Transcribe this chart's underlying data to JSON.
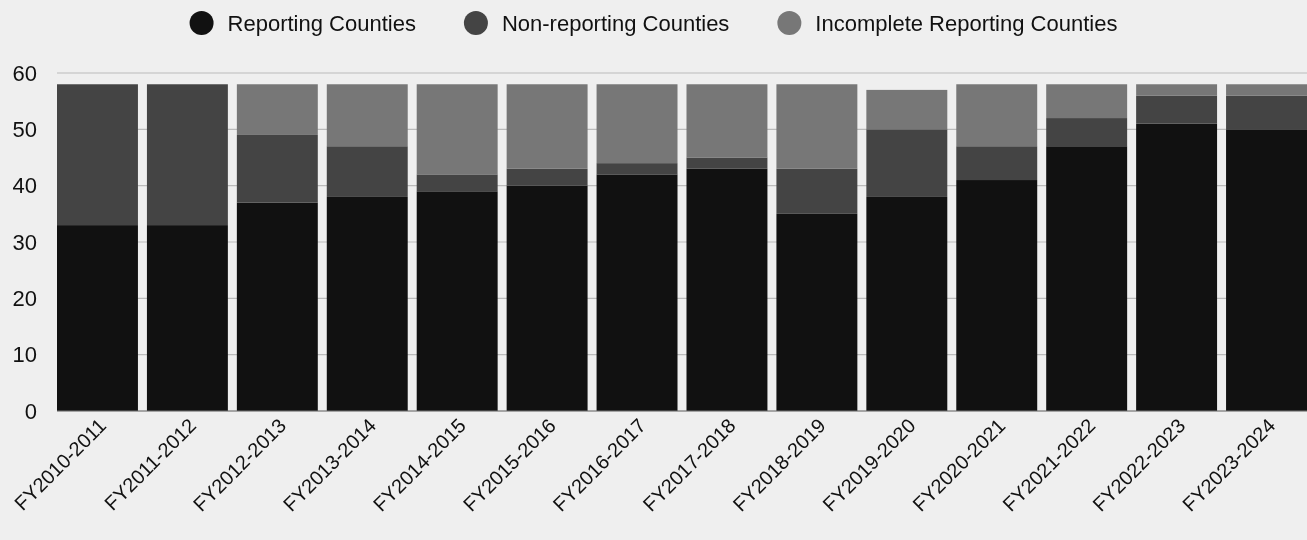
{
  "chart_data": {
    "type": "bar",
    "stacked": true,
    "categories": [
      "FY2010-2011",
      "FY2011-2012",
      "FY2012-2013",
      "FY2013-2014",
      "FY2014-2015",
      "FY2015-2016",
      "FY2016-2017",
      "FY2017-2018",
      "FY2018-2019",
      "FY2019-2020",
      "FY2020-2021",
      "FY2021-2022",
      "FY2022-2023",
      "FY2023-2024"
    ],
    "series": [
      {
        "name": "Reporting Counties",
        "color": "#111111",
        "values": [
          33,
          33,
          37,
          38,
          39,
          40,
          42,
          43,
          35,
          38,
          41,
          47,
          51,
          50
        ]
      },
      {
        "name": "Non-reporting Counties",
        "color": "#444444",
        "values": [
          25,
          25,
          12,
          9,
          3,
          3,
          2,
          2,
          8,
          12,
          6,
          5,
          5,
          6
        ]
      },
      {
        "name": "Incomplete Reporting Counties",
        "color": "#777777",
        "values": [
          0,
          0,
          9,
          11,
          16,
          15,
          14,
          13,
          15,
          7,
          11,
          6,
          2,
          2
        ]
      }
    ],
    "ylim": [
      0,
      60
    ],
    "yticks": [
      0,
      10,
      20,
      30,
      40,
      50,
      60
    ],
    "grid": "y",
    "legend": "top"
  }
}
